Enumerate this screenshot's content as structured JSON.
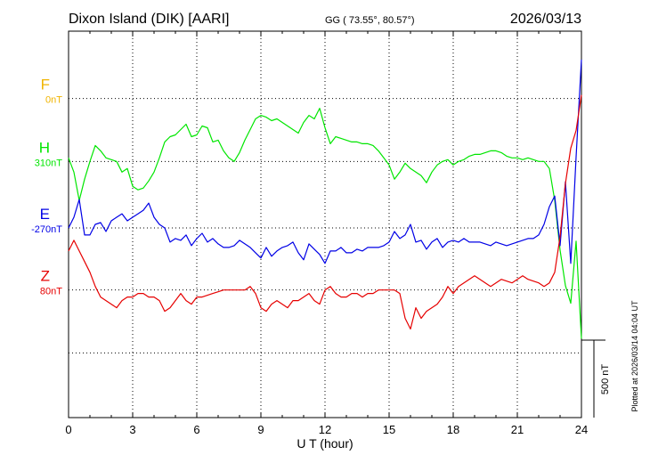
{
  "header": {
    "station": "Dixon Island (DIK)  [AARI]",
    "coords": "GG ( 73.55°,  80.57°)",
    "date": "2026/03/13"
  },
  "footer": {
    "plotted": "Plotted at 2026/03/14 04:04 UT"
  },
  "scale_bar": {
    "label": "500 nT",
    "value_nT": 500
  },
  "chart_data": {
    "type": "line",
    "xlabel": "U T (hour)",
    "xlim": [
      0,
      24
    ],
    "xticks": [
      0,
      3,
      6,
      9,
      12,
      15,
      18,
      21,
      24
    ],
    "xtick_labels": [
      "0",
      "3",
      "6",
      "9",
      "12",
      "15",
      "18",
      "21",
      "24"
    ],
    "ylim": [
      -1090,
      1090
    ],
    "grid": true,
    "series": [
      {
        "name": "F",
        "baseline_label": "0nT",
        "offset": 710,
        "color": "#f0b400",
        "x": [],
        "y": []
      },
      {
        "name": "H",
        "baseline_label": "310nT",
        "offset": 355,
        "color": "#00e600",
        "x": [
          0,
          0.25,
          0.5,
          0.75,
          1,
          1.25,
          1.5,
          1.75,
          2,
          2.25,
          2.5,
          2.75,
          3,
          3.25,
          3.5,
          3.75,
          4,
          4.25,
          4.5,
          4.75,
          5,
          5.25,
          5.5,
          5.75,
          6,
          6.25,
          6.5,
          6.75,
          7,
          7.25,
          7.5,
          7.75,
          8,
          8.25,
          8.5,
          8.75,
          9,
          9.25,
          9.5,
          9.75,
          10,
          10.25,
          10.5,
          10.75,
          11,
          11.25,
          11.5,
          11.75,
          12,
          12.25,
          12.5,
          12.75,
          13,
          13.25,
          13.5,
          13.75,
          14,
          14.25,
          14.5,
          14.75,
          15,
          15.25,
          15.5,
          15.75,
          16,
          16.25,
          16.5,
          16.75,
          17,
          17.25,
          17.5,
          17.75,
          18,
          18.25,
          18.5,
          18.75,
          19,
          19.25,
          19.5,
          19.75,
          20,
          20.25,
          20.5,
          20.75,
          21,
          21.25,
          21.5,
          21.75,
          22,
          22.25,
          22.5,
          22.75,
          23,
          23.25,
          23.5,
          23.75,
          24
        ],
        "y": [
          20,
          -60,
          -220,
          -100,
          0,
          90,
          60,
          20,
          10,
          0,
          -60,
          -40,
          -140,
          -160,
          -150,
          -110,
          -60,
          20,
          110,
          140,
          150,
          180,
          210,
          140,
          150,
          200,
          190,
          110,
          120,
          60,
          20,
          0,
          50,
          120,
          180,
          240,
          260,
          250,
          230,
          240,
          220,
          200,
          180,
          160,
          220,
          260,
          240,
          300,
          190,
          100,
          140,
          130,
          120,
          110,
          110,
          100,
          100,
          90,
          60,
          20,
          -20,
          -100,
          -60,
          -10,
          -40,
          -60,
          -80,
          -120,
          -60,
          -20,
          0,
          10,
          -20,
          0,
          10,
          30,
          40,
          40,
          50,
          60,
          60,
          50,
          30,
          20,
          20,
          10,
          20,
          10,
          0,
          0,
          -40,
          -220,
          -500,
          -700,
          -800,
          -450,
          -1000
        ]
      },
      {
        "name": "E",
        "baseline_label": "-270nT",
        "offset": -20,
        "color": "#0000e6",
        "x": [
          0,
          0.25,
          0.5,
          0.75,
          1,
          1.25,
          1.5,
          1.75,
          2,
          2.25,
          2.5,
          2.75,
          3,
          3.25,
          3.5,
          3.75,
          4,
          4.25,
          4.5,
          4.75,
          5,
          5.25,
          5.5,
          5.75,
          6,
          6.25,
          6.5,
          6.75,
          7,
          7.25,
          7.5,
          7.75,
          8,
          8.25,
          8.5,
          8.75,
          9,
          9.25,
          9.5,
          9.75,
          10,
          10.25,
          10.5,
          10.75,
          11,
          11.25,
          11.5,
          11.75,
          12,
          12.25,
          12.5,
          12.75,
          13,
          13.25,
          13.5,
          13.75,
          14,
          14.25,
          14.5,
          14.75,
          15,
          15.25,
          15.5,
          15.75,
          16,
          16.25,
          16.5,
          16.75,
          17,
          17.25,
          17.5,
          17.75,
          18,
          18.25,
          18.5,
          18.75,
          19,
          19.25,
          19.5,
          19.75,
          20,
          20.25,
          20.5,
          20.75,
          21,
          21.25,
          21.5,
          21.75,
          22,
          22.25,
          22.5,
          22.75,
          23,
          23.25,
          23.5,
          23.75,
          24
        ],
        "y": [
          0,
          60,
          160,
          -40,
          -40,
          20,
          30,
          -20,
          40,
          60,
          80,
          40,
          60,
          80,
          100,
          140,
          60,
          20,
          0,
          -80,
          -60,
          -70,
          -40,
          -100,
          -60,
          -30,
          -80,
          -60,
          -90,
          -110,
          -110,
          -100,
          -70,
          -90,
          -110,
          -140,
          -170,
          -110,
          -160,
          -130,
          -110,
          -100,
          -80,
          -140,
          -180,
          -90,
          -120,
          -150,
          -200,
          -130,
          -130,
          -110,
          -140,
          -140,
          -120,
          -130,
          -110,
          -110,
          -110,
          -100,
          -80,
          -20,
          -60,
          -40,
          20,
          -80,
          -70,
          -120,
          -80,
          -60,
          -110,
          -80,
          -70,
          -80,
          -60,
          -80,
          -80,
          -80,
          -90,
          -100,
          -80,
          -90,
          -100,
          -90,
          -80,
          -70,
          -60,
          -60,
          -40,
          20,
          120,
          180,
          -100,
          260,
          -200,
          400,
          950
        ]
      },
      {
        "name": "Z",
        "baseline_label": "80nT",
        "offset": -370,
        "color": "#e60000",
        "x": [
          0,
          0.25,
          0.5,
          0.75,
          1,
          1.25,
          1.5,
          1.75,
          2,
          2.25,
          2.5,
          2.75,
          3,
          3.25,
          3.5,
          3.75,
          4,
          4.25,
          4.5,
          4.75,
          5,
          5.25,
          5.5,
          5.75,
          6,
          6.25,
          6.5,
          6.75,
          7,
          7.25,
          7.5,
          7.75,
          8,
          8.25,
          8.5,
          8.75,
          9,
          9.25,
          9.5,
          9.75,
          10,
          10.25,
          10.5,
          10.75,
          11,
          11.25,
          11.5,
          11.75,
          12,
          12.25,
          12.5,
          12.75,
          13,
          13.25,
          13.5,
          13.75,
          14,
          14.25,
          14.5,
          14.75,
          15,
          15.25,
          15.5,
          15.75,
          16,
          16.25,
          16.5,
          16.75,
          17,
          17.25,
          17.5,
          17.75,
          18,
          18.25,
          18.5,
          18.75,
          19,
          19.25,
          19.5,
          19.75,
          20,
          20.25,
          20.5,
          20.75,
          21,
          21.25,
          21.5,
          21.75,
          22,
          22.25,
          22.5,
          22.75,
          23,
          23.25,
          23.5,
          23.75,
          24
        ],
        "y": [
          220,
          280,
          220,
          160,
          100,
          20,
          -40,
          -60,
          -80,
          -100,
          -60,
          -40,
          -40,
          -20,
          -20,
          -40,
          -40,
          -60,
          -120,
          -100,
          -60,
          -20,
          -60,
          -80,
          -40,
          -40,
          -30,
          -20,
          -10,
          0,
          0,
          0,
          0,
          0,
          20,
          -20,
          -100,
          -120,
          -80,
          -60,
          -80,
          -100,
          -60,
          -60,
          -40,
          -20,
          -60,
          -80,
          0,
          20,
          -20,
          -40,
          -40,
          -20,
          -20,
          -40,
          -20,
          -20,
          0,
          0,
          0,
          0,
          -20,
          -160,
          -220,
          -100,
          -160,
          -120,
          -100,
          -80,
          -40,
          20,
          -20,
          20,
          40,
          60,
          80,
          60,
          40,
          20,
          40,
          60,
          50,
          40,
          60,
          80,
          60,
          50,
          40,
          20,
          40,
          100,
          300,
          600,
          800,
          900,
          1100
        ]
      }
    ]
  }
}
